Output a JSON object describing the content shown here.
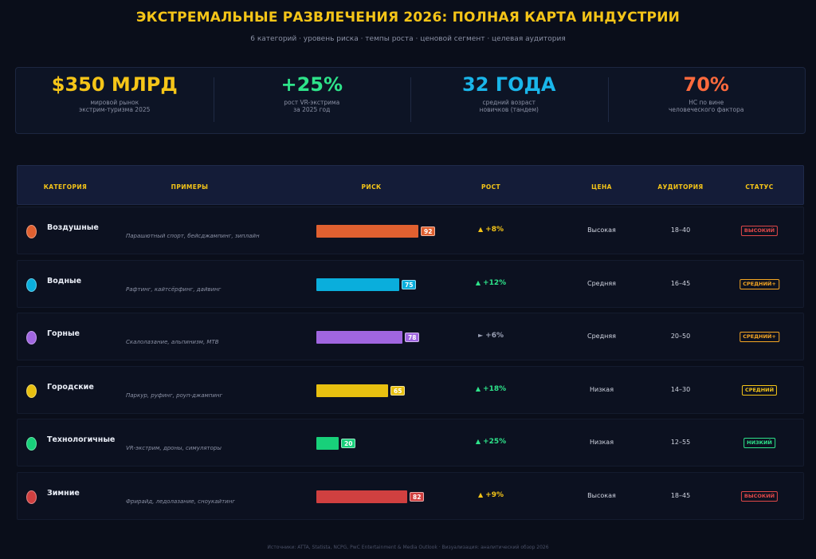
{
  "title": "ЭКСТРЕМАЛЬНЫЕ РАЗВЛЕЧЕНИЯ 2026: ПОЛНАЯ КАРТА ИНДУСТРИИ",
  "subtitle": "6 категорий · уровень риска · темпы роста · ценовой сегмент · целевая аудитория",
  "kpis": [
    {
      "value": "$350 МЛРД",
      "caption": "мировой рынок\nэкстрим-туризма 2025",
      "color": "#f5c518"
    },
    {
      "value": "+25%",
      "caption": "рост VR-экстрима\nза 2025 год",
      "color": "#2ee38a"
    },
    {
      "value": "32 ГОДА",
      "caption": "средний возраст\nновичков (тандем)",
      "color": "#1ab6ea"
    },
    {
      "value": "70%",
      "caption": "НС по вине\nчеловеческого фактора",
      "color": "#ff6a3d"
    }
  ],
  "headers": {
    "category": "КАТЕГОРИЯ",
    "examples": "ПРИМЕРЫ",
    "risk": "РИСК",
    "growth": "РОСТ",
    "price": "ЦЕНА",
    "audience": "АУДИТОРИЯ",
    "status": "СТАТУС"
  },
  "chart_data": {
    "type": "table",
    "rows": [
      {
        "category": "Воздушные",
        "examples": "Парашютный спорт, бейсджампинг, зиплайн",
        "risk": 92,
        "growth_arrow": "▲",
        "growth": "+8%",
        "price": "Высокая",
        "audience": "18–40",
        "status": "ВЫСОКИЙ",
        "color": "#e06030",
        "growth_color": "#f5c518",
        "status_color": "#e04848"
      },
      {
        "category": "Водные",
        "examples": "Рафтинг, кайтсёрфинг, дайвинг",
        "risk": 75,
        "growth_arrow": "▲",
        "growth": "+12%",
        "price": "Средняя",
        "audience": "16–45",
        "status": "СРЕДНИЙ+",
        "color": "#0aaedc",
        "growth_color": "#2ee38a",
        "status_color": "#f5a623"
      },
      {
        "category": "Горные",
        "examples": "Скалолазание, альпинизм, МТВ",
        "risk": 78,
        "growth_arrow": "►",
        "growth": "+6%",
        "price": "Средняя",
        "audience": "20–50",
        "status": "СРЕДНИЙ+",
        "color": "#a066e0",
        "growth_color": "#9aa0b4",
        "status_color": "#f5a623"
      },
      {
        "category": "Городские",
        "examples": "Паркур, руфинг, роуп-джампинг",
        "risk": 65,
        "growth_arrow": "▲",
        "growth": "+18%",
        "price": "Низкая",
        "audience": "14–30",
        "status": "СРЕДНИЙ",
        "color": "#e8c010",
        "growth_color": "#2ee38a",
        "status_color": "#f5c518"
      },
      {
        "category": "Технологичные",
        "examples": "VR-экстрим, дроны, симуляторы",
        "risk": 20,
        "growth_arrow": "▲",
        "growth": "+25%",
        "price": "Низкая",
        "audience": "12–55",
        "status": "НИЗКИЙ",
        "color": "#18d07a",
        "growth_color": "#2ee38a",
        "status_color": "#2ee38a"
      },
      {
        "category": "Зимние",
        "examples": "Фрирайд, ледолазание, сноукайтинг",
        "risk": 82,
        "growth_arrow": "▲",
        "growth": "+9%",
        "price": "Высокая",
        "audience": "18–45",
        "status": "ВЫСОКИЙ",
        "color": "#d04040",
        "growth_color": "#f5c518",
        "status_color": "#e04848"
      }
    ],
    "risk_range": [
      0,
      100
    ]
  },
  "footer": "Источники: ATTA, Statista, NCPG, PwC Entertainment & Media Outlook · Визуализация: аналитический обзор 2026"
}
